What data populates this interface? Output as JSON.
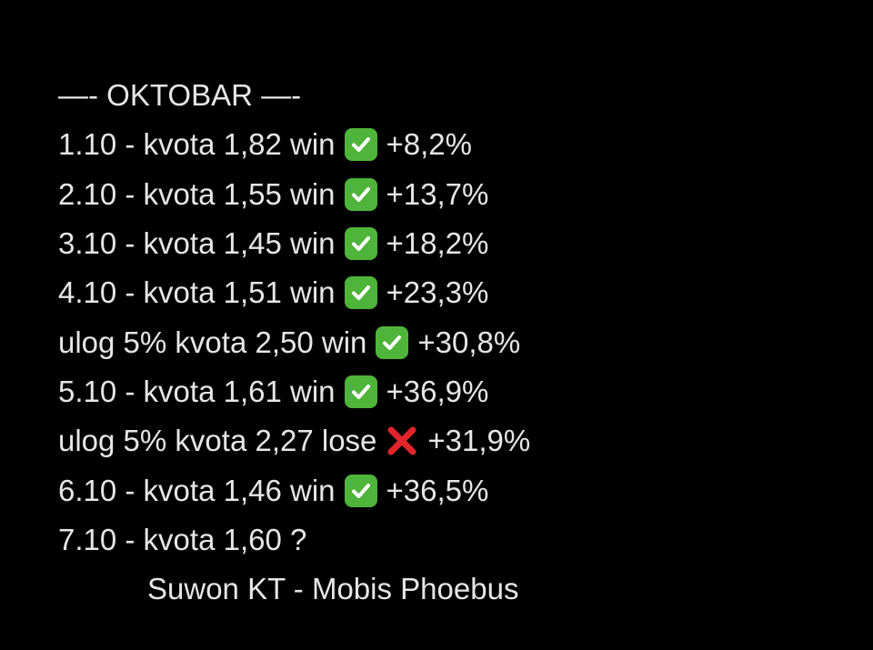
{
  "header": "—- OKTOBAR —-",
  "lines": [
    {
      "text": "1.10 - kvota 1,82 win",
      "icon": "check-icon",
      "result": "+8,2%"
    },
    {
      "text": "2.10 - kvota 1,55 win",
      "icon": "check-icon",
      "result": "+13,7%"
    },
    {
      "text": "3.10 - kvota 1,45 win",
      "icon": "check-icon",
      "result": "+18,2%"
    },
    {
      "text": "4.10 - kvota 1,51 win",
      "icon": "check-icon",
      "result": "+23,3%"
    },
    {
      "text": "ulog 5% kvota 2,50 win",
      "icon": "check-icon",
      "result": "+30,8%"
    },
    {
      "text": "5.10 - kvota 1,61 win",
      "icon": "check-icon",
      "result": "+36,9%"
    },
    {
      "text": "ulog 5% kvota 2,27 lose",
      "icon": "cross-icon",
      "result": "+31,9%"
    },
    {
      "text": "6.10 - kvota 1,46 win",
      "icon": "check-icon",
      "result": "+36,5%"
    }
  ],
  "pending": "7.10 - kvota 1,60 ?",
  "match": "Suwon KT - Mobis Phoebus",
  "colors": {
    "check": "#4fb43a",
    "cross": "#e0242b",
    "text": "#e6e6e6",
    "background": "#000000"
  }
}
